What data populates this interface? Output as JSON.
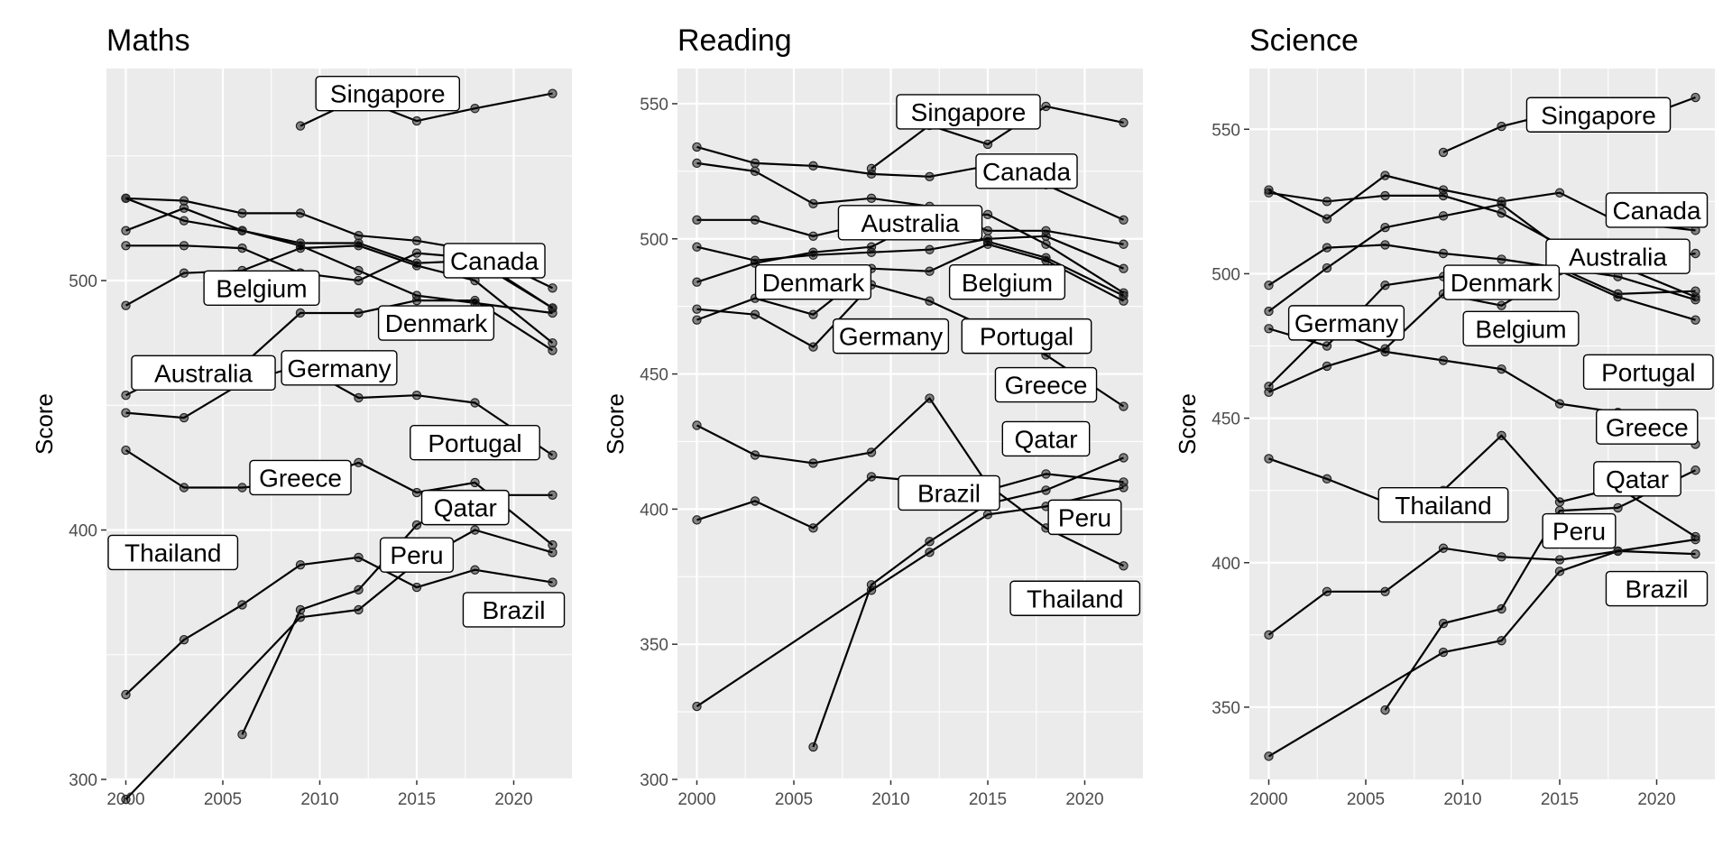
{
  "chart_data": [
    {
      "type": "line",
      "title": "Maths",
      "ylabel": "Score",
      "xlabel": "",
      "xlim": [
        1999,
        2023
      ],
      "ylim": [
        300,
        585
      ],
      "xticks": [
        2000,
        2005,
        2010,
        2015,
        2020
      ],
      "yticks": [
        300,
        400,
        500
      ],
      "series": [
        {
          "name": "Singapore",
          "x": [
            2009,
            2012,
            2015,
            2018,
            2022
          ],
          "y": [
            562,
            573,
            564,
            569,
            575
          ],
          "label_at": [
            2013.5,
            575
          ]
        },
        {
          "name": "Canada",
          "x": [
            2000,
            2003,
            2006,
            2009,
            2012,
            2015,
            2018,
            2022
          ],
          "y": [
            533,
            532,
            527,
            527,
            518,
            516,
            512,
            497
          ],
          "label_at": [
            2019,
            508
          ]
        },
        {
          "name": "Belgium",
          "x": [
            2000,
            2003,
            2006,
            2009,
            2012,
            2015,
            2018,
            2022
          ],
          "y": [
            520,
            529,
            520,
            515,
            515,
            507,
            508,
            489
          ],
          "label_at": [
            2007,
            497
          ]
        },
        {
          "name": "Denmark",
          "x": [
            2000,
            2003,
            2006,
            2009,
            2012,
            2015,
            2018,
            2022
          ],
          "y": [
            514,
            514,
            513,
            503,
            500,
            511,
            509,
            489
          ],
          "label_at": [
            2016,
            483
          ]
        },
        {
          "name": "Australia",
          "x": [
            2000,
            2003,
            2006,
            2009,
            2012,
            2015,
            2018,
            2022
          ],
          "y": [
            533,
            524,
            520,
            514,
            504,
            494,
            491,
            487
          ],
          "label_at": [
            2004,
            463
          ]
        },
        {
          "name": "Germany",
          "x": [
            2000,
            2003,
            2006,
            2009,
            2012,
            2015,
            2018,
            2022
          ],
          "y": [
            490,
            503,
            504,
            513,
            514,
            506,
            500,
            475
          ],
          "label_at": [
            2011,
            465
          ]
        },
        {
          "name": "Portugal",
          "x": [
            2000,
            2003,
            2006,
            2009,
            2012,
            2015,
            2018,
            2022
          ],
          "y": [
            454,
            466,
            466,
            487,
            487,
            492,
            492,
            472
          ],
          "label_at": [
            2018,
            435
          ]
        },
        {
          "name": "Greece",
          "x": [
            2000,
            2003,
            2006,
            2009,
            2012,
            2015,
            2018,
            2022
          ],
          "y": [
            447,
            445,
            459,
            466,
            453,
            454,
            451,
            430
          ],
          "label_at": [
            2009,
            421
          ]
        },
        {
          "name": "Qatar",
          "x": [
            2006,
            2009,
            2012,
            2015,
            2018,
            2022
          ],
          "y": [
            318,
            368,
            376,
            402,
            414,
            414
          ],
          "label_at": [
            2017.5,
            409
          ]
        },
        {
          "name": "Thailand",
          "x": [
            2000,
            2003,
            2006,
            2009,
            2012,
            2015,
            2018,
            2022
          ],
          "y": [
            432,
            417,
            417,
            419,
            427,
            415,
            419,
            394
          ],
          "label_at": [
            2002,
            391
          ]
        },
        {
          "name": "Peru",
          "x": [
            2000,
            2009,
            2012,
            2015,
            2018,
            2022
          ],
          "y": [
            292,
            365,
            368,
            387,
            400,
            391
          ],
          "label_at": [
            2015,
            390
          ]
        },
        {
          "name": "Brazil",
          "x": [
            2000,
            2003,
            2006,
            2009,
            2012,
            2015,
            2018,
            2022
          ],
          "y": [
            334,
            356,
            370,
            386,
            389,
            377,
            384,
            379
          ],
          "label_at": [
            2020,
            368
          ]
        }
      ]
    },
    {
      "type": "line",
      "title": "Reading",
      "ylabel": "Score",
      "xlabel": "",
      "xlim": [
        1999,
        2023
      ],
      "ylim": [
        300,
        563
      ],
      "xticks": [
        2000,
        2005,
        2010,
        2015,
        2020
      ],
      "yticks": [
        300,
        350,
        400,
        450,
        500,
        550
      ],
      "series": [
        {
          "name": "Singapore",
          "x": [
            2009,
            2012,
            2015,
            2018,
            2022
          ],
          "y": [
            526,
            542,
            535,
            549,
            543
          ],
          "label_at": [
            2014,
            547
          ]
        },
        {
          "name": "Canada",
          "x": [
            2000,
            2003,
            2006,
            2009,
            2012,
            2015,
            2018,
            2022
          ],
          "y": [
            534,
            528,
            527,
            524,
            523,
            527,
            520,
            507
          ],
          "label_at": [
            2017,
            525
          ]
        },
        {
          "name": "Australia",
          "x": [
            2000,
            2003,
            2006,
            2009,
            2012,
            2015,
            2018,
            2022
          ],
          "y": [
            528,
            525,
            513,
            515,
            512,
            503,
            503,
            498
          ],
          "label_at": [
            2011,
            506
          ]
        },
        {
          "name": "Belgium",
          "x": [
            2000,
            2003,
            2006,
            2009,
            2012,
            2015,
            2018,
            2022
          ],
          "y": [
            507,
            507,
            501,
            506,
            509,
            499,
            493,
            479
          ],
          "label_at": [
            2016,
            484
          ]
        },
        {
          "name": "Denmark",
          "x": [
            2000,
            2003,
            2006,
            2009,
            2012,
            2015,
            2018,
            2022
          ],
          "y": [
            497,
            492,
            494,
            495,
            496,
            500,
            501,
            489
          ],
          "label_at": [
            2006,
            484
          ]
        },
        {
          "name": "Germany",
          "x": [
            2000,
            2003,
            2006,
            2009,
            2012,
            2015,
            2018,
            2022
          ],
          "y": [
            484,
            491,
            495,
            497,
            508,
            509,
            498,
            480
          ],
          "label_at": [
            2010,
            464
          ]
        },
        {
          "name": "Portugal",
          "x": [
            2000,
            2003,
            2006,
            2009,
            2012,
            2015,
            2018,
            2022
          ],
          "y": [
            470,
            478,
            472,
            489,
            488,
            498,
            492,
            477
          ],
          "label_at": [
            2017,
            464
          ]
        },
        {
          "name": "Greece",
          "x": [
            2000,
            2003,
            2006,
            2009,
            2012,
            2015,
            2018,
            2022
          ],
          "y": [
            474,
            472,
            460,
            483,
            477,
            467,
            457,
            438
          ],
          "label_at": [
            2018,
            446
          ]
        },
        {
          "name": "Qatar",
          "x": [
            2006,
            2009,
            2012,
            2015,
            2018,
            2022
          ],
          "y": [
            312,
            372,
            388,
            402,
            407,
            419
          ],
          "label_at": [
            2018,
            426
          ]
        },
        {
          "name": "Brazil",
          "x": [
            2000,
            2003,
            2006,
            2009,
            2012,
            2015,
            2018,
            2022
          ],
          "y": [
            396,
            403,
            393,
            412,
            410,
            407,
            413,
            410
          ],
          "label_at": [
            2013,
            406
          ]
        },
        {
          "name": "Peru",
          "x": [
            2000,
            2009,
            2012,
            2015,
            2018,
            2022
          ],
          "y": [
            327,
            370,
            384,
            398,
            401,
            408
          ],
          "label_at": [
            2020,
            397
          ]
        },
        {
          "name": "Thailand",
          "x": [
            2000,
            2003,
            2006,
            2009,
            2012,
            2015,
            2018,
            2022
          ],
          "y": [
            431,
            420,
            417,
            421,
            441,
            409,
            393,
            379
          ],
          "label_at": [
            2019.5,
            367
          ]
        }
      ]
    },
    {
      "type": "line",
      "title": "Science",
      "ylabel": "Score",
      "xlabel": "",
      "xlim": [
        1999,
        2023
      ],
      "ylim": [
        325,
        571
      ],
      "xticks": [
        2000,
        2005,
        2010,
        2015,
        2020
      ],
      "yticks": [
        350,
        400,
        450,
        500,
        550
      ],
      "series": [
        {
          "name": "Singapore",
          "x": [
            2009,
            2012,
            2015,
            2018,
            2022
          ],
          "y": [
            542,
            551,
            556,
            551,
            561
          ],
          "label_at": [
            2017,
            555
          ]
        },
        {
          "name": "Canada",
          "x": [
            2000,
            2003,
            2006,
            2009,
            2012,
            2015,
            2018,
            2022
          ],
          "y": [
            529,
            519,
            534,
            529,
            525,
            528,
            518,
            515
          ],
          "label_at": [
            2020,
            522
          ]
        },
        {
          "name": "Australia",
          "x": [
            2000,
            2003,
            2006,
            2009,
            2012,
            2015,
            2018,
            2022
          ],
          "y": [
            528,
            525,
            527,
            527,
            521,
            510,
            503,
            507
          ],
          "label_at": [
            2018,
            506
          ]
        },
        {
          "name": "Denmark",
          "x": [
            2000,
            2003,
            2006,
            2009,
            2012,
            2015,
            2018,
            2022
          ],
          "y": [
            481,
            475,
            496,
            499,
            498,
            502,
            493,
            494
          ],
          "label_at": [
            2012,
            497
          ]
        },
        {
          "name": "Belgium",
          "x": [
            2000,
            2003,
            2006,
            2009,
            2012,
            2015,
            2018,
            2022
          ],
          "y": [
            496,
            509,
            510,
            507,
            505,
            502,
            499,
            491
          ],
          "label_at": [
            2013,
            481
          ]
        },
        {
          "name": "Germany",
          "x": [
            2000,
            2003,
            2006,
            2009,
            2012,
            2015,
            2018,
            2022
          ],
          "y": [
            487,
            502,
            516,
            520,
            524,
            509,
            503,
            492
          ],
          "label_at": [
            2004,
            483
          ]
        },
        {
          "name": "Portugal",
          "x": [
            2000,
            2003,
            2006,
            2009,
            2012,
            2015,
            2018,
            2022
          ],
          "y": [
            459,
            468,
            474,
            493,
            489,
            501,
            492,
            484
          ],
          "label_at": [
            2020,
            466
          ]
        },
        {
          "name": "Greece",
          "x": [
            2000,
            2003,
            2006,
            2009,
            2012,
            2015,
            2018,
            2022
          ],
          "y": [
            461,
            481,
            473,
            470,
            467,
            455,
            452,
            441
          ],
          "label_at": [
            2019.5,
            447
          ]
        },
        {
          "name": "Thailand",
          "x": [
            2000,
            2003,
            2006,
            2009,
            2012,
            2015,
            2018,
            2022
          ],
          "y": [
            436,
            429,
            421,
            425,
            444,
            421,
            426,
            409
          ],
          "label_at": [
            2009,
            420
          ]
        },
        {
          "name": "Qatar",
          "x": [
            2006,
            2009,
            2012,
            2015,
            2018,
            2022
          ],
          "y": [
            349,
            379,
            384,
            418,
            419,
            432
          ],
          "label_at": [
            2019,
            429
          ]
        },
        {
          "name": "Peru",
          "x": [
            2000,
            2009,
            2012,
            2015,
            2018,
            2022
          ],
          "y": [
            333,
            369,
            373,
            397,
            404,
            408
          ],
          "label_at": [
            2016,
            411
          ]
        },
        {
          "name": "Brazil",
          "x": [
            2000,
            2003,
            2006,
            2009,
            2012,
            2015,
            2018,
            2022
          ],
          "y": [
            375,
            390,
            390,
            405,
            402,
            401,
            404,
            403
          ],
          "label_at": [
            2020,
            391
          ]
        }
      ]
    }
  ]
}
